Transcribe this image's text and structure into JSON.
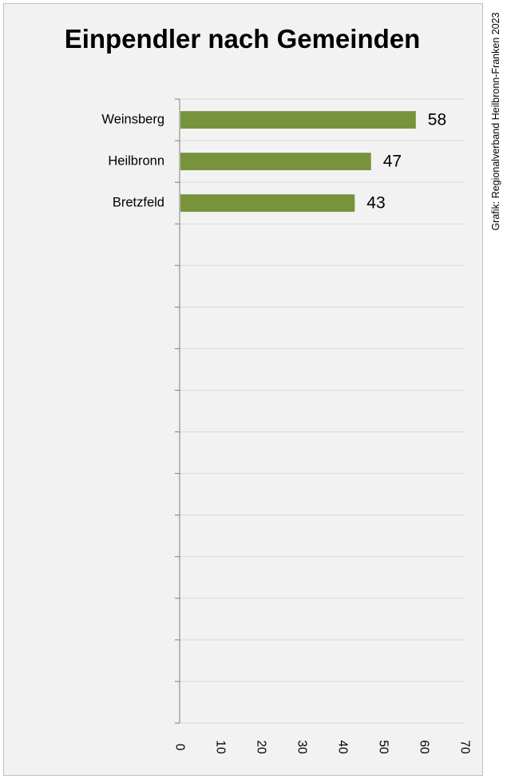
{
  "chart_data": {
    "type": "bar",
    "orientation": "horizontal",
    "title": "Einpendler nach Gemeinden",
    "source": "Grafik: Regionalverband Heilbronn-Franken 2023",
    "categories": [
      "Weinsberg",
      "Heilbronn",
      "Bretzfeld"
    ],
    "values": [
      58,
      47,
      43
    ],
    "xlim": [
      0,
      70
    ],
    "x_ticks": [
      0,
      10,
      20,
      30,
      40,
      50,
      60,
      70
    ],
    "category_slots": 15,
    "bar_color": "#77933c",
    "grid": true,
    "legend": "none"
  }
}
